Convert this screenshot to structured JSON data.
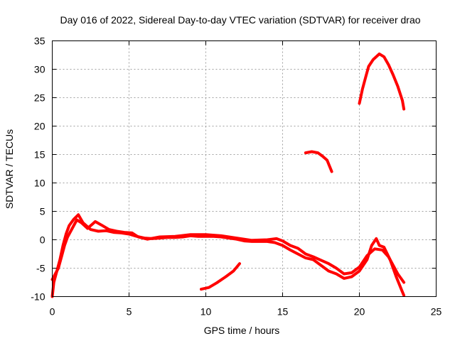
{
  "chart_data": {
    "type": "line",
    "title": "Day 016 of 2022, Sidereal Day-to-day VTEC variation (SDTVAR) for receiver drao",
    "xlabel": "GPS time / hours",
    "ylabel": "SDTVAR / TECUs",
    "xlim": [
      0,
      25
    ],
    "ylim": [
      -10,
      35
    ],
    "xticks": [
      0,
      5,
      10,
      15,
      20,
      25
    ],
    "yticks": [
      -10,
      -5,
      0,
      5,
      10,
      15,
      20,
      25,
      30,
      35
    ],
    "grid": true,
    "color": "#ff0000",
    "series": [
      {
        "name": "track-1",
        "points": [
          [
            0.0,
            -10
          ],
          [
            0.1,
            -7.5
          ],
          [
            0.3,
            -5.5
          ],
          [
            0.5,
            -3.5
          ],
          [
            0.7,
            -1
          ],
          [
            0.9,
            1
          ],
          [
            1.1,
            2.5
          ],
          [
            1.4,
            3.6
          ],
          [
            1.7,
            4.4
          ],
          [
            2.0,
            3
          ],
          [
            2.5,
            1.8
          ],
          [
            3.0,
            1.5
          ],
          [
            3.5,
            1.6
          ],
          [
            4.0,
            1.3
          ],
          [
            4.5,
            1.2
          ],
          [
            5.0,
            1.0
          ],
          [
            5.5,
            0.6
          ],
          [
            6.0,
            0.3
          ],
          [
            6.5,
            0.2
          ],
          [
            7.0,
            0.3
          ],
          [
            7.5,
            0.4
          ],
          [
            8.0,
            0.4
          ],
          [
            8.5,
            0.5
          ],
          [
            9.0,
            0.7
          ],
          [
            9.5,
            0.6
          ],
          [
            10.0,
            0.6
          ],
          [
            10.5,
            0.6
          ],
          [
            11.0,
            0.5
          ],
          [
            11.5,
            0.3
          ],
          [
            12.0,
            0.1
          ],
          [
            12.5,
            -0.2
          ],
          [
            13.0,
            -0.3
          ],
          [
            13.5,
            -0.3
          ],
          [
            14.0,
            -0.3
          ],
          [
            14.5,
            -0.5
          ],
          [
            15.0,
            -1.0
          ],
          [
            15.5,
            -1.8
          ],
          [
            16.0,
            -2.5
          ],
          [
            16.5,
            -3.2
          ],
          [
            17.0,
            -3.5
          ],
          [
            17.5,
            -4.5
          ],
          [
            18.0,
            -5.5
          ],
          [
            18.5,
            -6.0
          ],
          [
            19.0,
            -6.8
          ],
          [
            19.5,
            -6.5
          ],
          [
            20.0,
            -5.5
          ],
          [
            20.5,
            -3.5
          ],
          [
            20.8,
            -1.0
          ],
          [
            21.1,
            0.2
          ],
          [
            21.3,
            -1.0
          ],
          [
            21.6,
            -1.3
          ],
          [
            22.0,
            -3.5
          ],
          [
            22.4,
            -6.5
          ],
          [
            22.7,
            -8.5
          ],
          [
            22.9,
            -9.8
          ]
        ]
      },
      {
        "name": "track-2",
        "points": [
          [
            0.0,
            -7.0
          ],
          [
            0.2,
            -6.0
          ],
          [
            0.4,
            -5.0
          ],
          [
            0.6,
            -3.0
          ],
          [
            0.8,
            -1.0
          ],
          [
            1.0,
            0.5
          ],
          [
            1.3,
            2.0
          ],
          [
            1.6,
            3.5
          ],
          [
            1.9,
            3.0
          ],
          [
            2.3,
            2.0
          ],
          [
            2.8,
            3.2
          ],
          [
            3.2,
            2.6
          ],
          [
            3.7,
            1.8
          ],
          [
            4.2,
            1.5
          ],
          [
            4.7,
            1.3
          ],
          [
            5.2,
            1.2
          ],
          [
            5.6,
            0.5
          ],
          [
            6.2,
            0.1
          ],
          [
            7.0,
            0.5
          ],
          [
            8.0,
            0.6
          ],
          [
            9.0,
            0.9
          ],
          [
            10.0,
            0.9
          ],
          [
            11.0,
            0.7
          ],
          [
            12.0,
            0.3
          ],
          [
            13.0,
            -0.1
          ],
          [
            14.0,
            0.0
          ],
          [
            14.6,
            0.2
          ],
          [
            15.0,
            -0.2
          ],
          [
            15.5,
            -1.0
          ],
          [
            16.0,
            -1.5
          ],
          [
            16.5,
            -2.5
          ],
          [
            17.0,
            -3.0
          ],
          [
            17.5,
            -3.6
          ],
          [
            18.0,
            -4.2
          ],
          [
            18.5,
            -5.0
          ],
          [
            19.0,
            -6.0
          ],
          [
            19.5,
            -5.8
          ],
          [
            20.0,
            -4.8
          ],
          [
            20.5,
            -2.8
          ],
          [
            21.0,
            -1.6
          ],
          [
            21.5,
            -1.8
          ],
          [
            21.9,
            -3.0
          ],
          [
            22.2,
            -4.5
          ],
          [
            22.5,
            -6.0
          ],
          [
            22.9,
            -7.5
          ]
        ]
      },
      {
        "name": "track-3",
        "points": [
          [
            9.7,
            -8.7
          ],
          [
            10.2,
            -8.4
          ],
          [
            10.7,
            -7.6
          ],
          [
            11.3,
            -6.5
          ],
          [
            11.8,
            -5.5
          ],
          [
            12.2,
            -4.2
          ]
        ]
      },
      {
        "name": "track-4",
        "points": [
          [
            16.5,
            15.3
          ],
          [
            16.9,
            15.5
          ],
          [
            17.3,
            15.3
          ],
          [
            17.6,
            14.7
          ],
          [
            17.9,
            14.0
          ],
          [
            18.2,
            12.0
          ]
        ]
      },
      {
        "name": "track-5",
        "points": [
          [
            20.0,
            24.0
          ],
          [
            20.2,
            26.5
          ],
          [
            20.4,
            28.5
          ],
          [
            20.6,
            30.5
          ],
          [
            20.9,
            31.7
          ],
          [
            21.3,
            32.7
          ],
          [
            21.6,
            32.2
          ],
          [
            21.9,
            30.8
          ],
          [
            22.2,
            29.0
          ],
          [
            22.5,
            27.0
          ],
          [
            22.8,
            24.5
          ],
          [
            22.9,
            23.0
          ]
        ]
      }
    ]
  }
}
